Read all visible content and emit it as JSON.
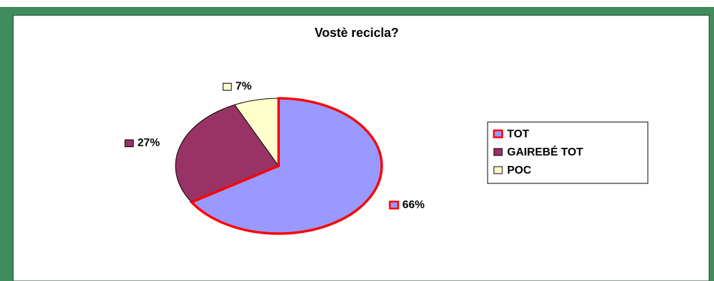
{
  "chart_data": {
    "type": "pie",
    "title": "Vostè recicla?",
    "categories": [
      "TOT",
      "GAIREBÉ TOT",
      "POC"
    ],
    "values": [
      66,
      27,
      7
    ],
    "value_labels": [
      "66%",
      "27%",
      "7%"
    ],
    "colors": [
      "#9999ff",
      "#993366",
      "#ffffcc"
    ],
    "edge_colors": [
      "#ff0000",
      "#000000",
      "#000000"
    ],
    "legend": "right"
  }
}
